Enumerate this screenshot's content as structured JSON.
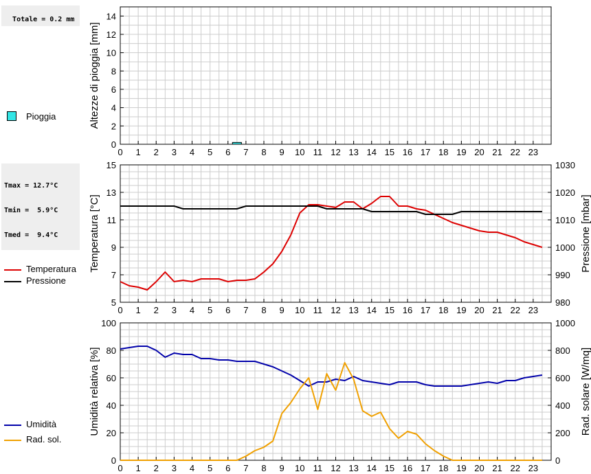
{
  "summaries": {
    "rain_total": "Totale = 0.2 mm",
    "temp": [
      "Tmax = 12.7°C",
      "Tmin =  5.9°C",
      "Tmed =  9.4°C"
    ]
  },
  "colors": {
    "rain": "#33e5e5",
    "temperature": "#dd0000",
    "pressure": "#000000",
    "humidity": "#0000aa",
    "radiation": "#f0a000",
    "grid": "#cccccc"
  },
  "legends": {
    "rain": [
      "Pioggia"
    ],
    "temp": [
      "Temperatura",
      "Pressione"
    ],
    "hum": [
      "Umidità",
      "Rad. sol."
    ]
  },
  "chart_data": [
    {
      "type": "bar",
      "ylabel": "Altezze di pioggia [mm]",
      "xlim": [
        0,
        24
      ],
      "ylim": [
        0,
        15
      ],
      "xticks": [
        "0",
        "1",
        "2",
        "3",
        "4",
        "5",
        "6",
        "7",
        "8",
        "9",
        "10",
        "11",
        "12",
        "13",
        "14",
        "15",
        "16",
        "17",
        "18",
        "19",
        "20",
        "21",
        "22",
        "23"
      ],
      "yticks": [
        "0",
        "2",
        "4",
        "6",
        "8",
        "10",
        "12",
        "14"
      ],
      "grid": true,
      "series": [
        {
          "name": "Pioggia",
          "x": [
            6.25
          ],
          "values": [
            0.2
          ],
          "width": 0.5
        }
      ]
    },
    {
      "type": "line",
      "ylabel": "Temperatura [°C]",
      "y2label": "Pressione [mbar]",
      "xlim": [
        0,
        24
      ],
      "ylim": [
        5,
        15
      ],
      "y2lim": [
        980,
        1030
      ],
      "xticks": [
        "0",
        "1",
        "2",
        "3",
        "4",
        "5",
        "6",
        "7",
        "8",
        "9",
        "10",
        "11",
        "12",
        "13",
        "14",
        "15",
        "16",
        "17",
        "18",
        "19",
        "20",
        "21",
        "22",
        "23"
      ],
      "yticks": [
        "5",
        "7",
        "9",
        "11",
        "13",
        "15"
      ],
      "y2ticks": [
        "980",
        "990",
        "1000",
        "1010",
        "1020",
        "1030"
      ],
      "grid": true,
      "series": [
        {
          "name": "Temperatura",
          "axis": "left",
          "x": [
            0,
            0.5,
            1,
            1.5,
            2,
            2.5,
            3,
            3.5,
            4,
            4.5,
            5,
            5.5,
            6,
            6.5,
            7,
            7.5,
            8,
            8.5,
            9,
            9.5,
            10,
            10.5,
            11,
            11.5,
            12,
            12.5,
            13,
            13.5,
            14,
            14.5,
            15,
            15.5,
            16,
            16.5,
            17,
            17.5,
            18,
            18.5,
            19,
            19.5,
            20,
            20.5,
            21,
            21.5,
            22,
            22.5,
            23,
            23.5
          ],
          "values": [
            6.5,
            6.2,
            6.1,
            5.9,
            6.5,
            7.2,
            6.5,
            6.6,
            6.5,
            6.7,
            6.7,
            6.7,
            6.5,
            6.6,
            6.6,
            6.7,
            7.2,
            7.8,
            8.7,
            9.9,
            11.5,
            12.1,
            12.1,
            12.0,
            11.9,
            12.3,
            12.3,
            11.8,
            12.2,
            12.7,
            12.7,
            12.0,
            12.0,
            11.8,
            11.7,
            11.4,
            11.1,
            10.8,
            10.6,
            10.4,
            10.2,
            10.1,
            10.1,
            9.9,
            9.7,
            9.4,
            9.2,
            9.0
          ]
        },
        {
          "name": "Pressione",
          "axis": "right",
          "x": [
            0,
            0.5,
            1,
            1.5,
            2,
            2.5,
            3,
            3.5,
            4,
            4.5,
            5,
            5.5,
            6,
            6.5,
            7,
            7.5,
            8,
            8.5,
            9,
            9.5,
            10,
            10.5,
            11,
            11.5,
            12,
            12.5,
            13,
            13.5,
            14,
            14.5,
            15,
            15.5,
            16,
            16.5,
            17,
            17.5,
            18,
            18.5,
            19,
            19.5,
            20,
            20.5,
            21,
            21.5,
            22,
            22.5,
            23,
            23.5
          ],
          "values": [
            1015,
            1015,
            1015,
            1015,
            1015,
            1015,
            1015,
            1014,
            1014,
            1014,
            1014,
            1014,
            1014,
            1014,
            1015,
            1015,
            1015,
            1015,
            1015,
            1015,
            1015,
            1015,
            1015,
            1014,
            1014,
            1014,
            1014,
            1014,
            1013,
            1013,
            1013,
            1013,
            1013,
            1013,
            1012,
            1012,
            1012,
            1012,
            1013,
            1013,
            1013,
            1013,
            1013,
            1013,
            1013,
            1013,
            1013,
            1013
          ]
        }
      ]
    },
    {
      "type": "line",
      "ylabel": "Umidità relativa [%]",
      "y2label": "Rad. solare [W/mq]",
      "xlim": [
        0,
        24
      ],
      "ylim": [
        0,
        100
      ],
      "y2lim": [
        0,
        1000
      ],
      "xticks": [
        "0",
        "1",
        "2",
        "3",
        "4",
        "5",
        "6",
        "7",
        "8",
        "9",
        "10",
        "11",
        "12",
        "13",
        "14",
        "15",
        "16",
        "17",
        "18",
        "19",
        "20",
        "21",
        "22",
        "23"
      ],
      "yticks": [
        "0",
        "20",
        "40",
        "60",
        "80",
        "100"
      ],
      "y2ticks": [
        "0",
        "200",
        "400",
        "600",
        "800",
        "1000"
      ],
      "grid": true,
      "series": [
        {
          "name": "Umidità",
          "axis": "left",
          "x": [
            0,
            0.5,
            1,
            1.5,
            2,
            2.5,
            3,
            3.5,
            4,
            4.5,
            5,
            5.5,
            6,
            6.5,
            7,
            7.5,
            8,
            8.5,
            9,
            9.5,
            10,
            10.5,
            11,
            11.5,
            12,
            12.5,
            13,
            13.5,
            14,
            14.5,
            15,
            15.5,
            16,
            16.5,
            17,
            17.5,
            18,
            18.5,
            19,
            19.5,
            20,
            20.5,
            21,
            21.5,
            22,
            22.5,
            23,
            23.5
          ],
          "values": [
            81,
            82,
            83,
            83,
            80,
            75,
            78,
            77,
            77,
            74,
            74,
            73,
            73,
            72,
            72,
            72,
            70,
            68,
            65,
            62,
            58,
            54,
            57,
            57,
            59,
            58,
            61,
            58,
            57,
            56,
            55,
            57,
            57,
            57,
            55,
            54,
            54,
            54,
            54,
            55,
            56,
            57,
            56,
            58,
            58,
            60,
            61,
            62
          ]
        },
        {
          "name": "Rad. sol.",
          "axis": "right",
          "x": [
            0,
            0.5,
            1,
            1.5,
            2,
            2.5,
            3,
            3.5,
            4,
            4.5,
            5,
            5.5,
            6,
            6.5,
            7,
            7.5,
            8,
            8.5,
            9,
            9.5,
            10,
            10.5,
            11,
            11.5,
            12,
            12.5,
            13,
            13.5,
            14,
            14.5,
            15,
            15.5,
            16,
            16.5,
            17,
            17.5,
            18,
            18.5,
            19,
            19.5,
            20,
            20.5,
            21,
            21.5,
            22,
            22.5,
            23,
            23.5
          ],
          "values": [
            0,
            0,
            0,
            0,
            0,
            0,
            0,
            0,
            0,
            0,
            0,
            0,
            0,
            0,
            30,
            70,
            95,
            140,
            340,
            420,
            520,
            600,
            370,
            630,
            510,
            710,
            590,
            360,
            320,
            350,
            230,
            160,
            210,
            190,
            120,
            70,
            30,
            0,
            0,
            0,
            0,
            0,
            0,
            0,
            0,
            0,
            0,
            0
          ]
        }
      ]
    }
  ]
}
